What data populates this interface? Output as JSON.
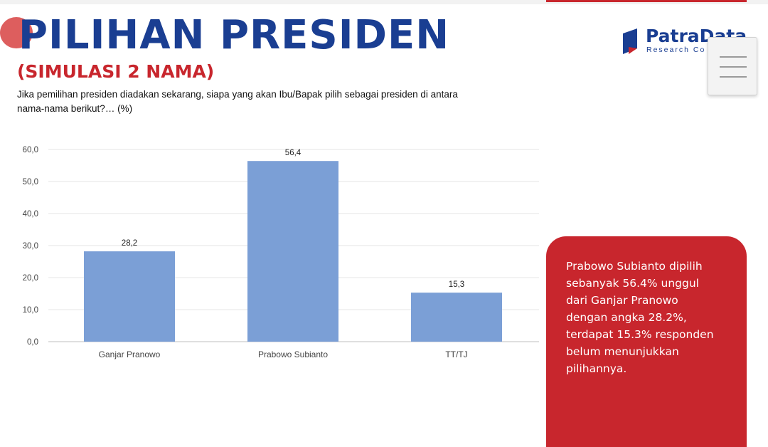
{
  "slide": {
    "title": "PILIHAN PRESIDEN",
    "subtitle": "(SIMULASI 2 NAMA)",
    "question": "Jika pemilihan presiden diadakan sekarang, siapa yang akan Ibu/Bapak pilih sebagai presiden di antara nama-nama berikut?… (%)",
    "callout": "Prabowo Subianto dipilih sebanyak 56.4% unggul dari Ganjar Pranowo dengan angka 28.2%, terdapat 15.3% responden belum menunjukkan pilihannya."
  },
  "logo": {
    "name": "PatraData",
    "tagline": "Research Co",
    "icon": "patradata-logo-mark"
  },
  "menu": {
    "icon": "hamburger-menu-icon"
  },
  "colors": {
    "title": "#1a3e92",
    "accent": "#c8262d",
    "bar": "#7b9fd6",
    "callout_bg": "#c8262d"
  },
  "chart_data": {
    "type": "bar",
    "categories": [
      "Ganjar Pranowo",
      "Prabowo Subianto",
      "TT/TJ"
    ],
    "values": [
      28.2,
      56.4,
      15.3
    ],
    "data_labels": [
      "28,2",
      "56,4",
      "15,3"
    ],
    "y_ticks": [
      "0,0",
      "10,0",
      "20,0",
      "30,0",
      "40,0",
      "50,0",
      "60,0"
    ],
    "ylim": [
      0,
      60
    ],
    "grid": true,
    "legend": "none",
    "title": "",
    "xlabel": "",
    "ylabel": ""
  }
}
